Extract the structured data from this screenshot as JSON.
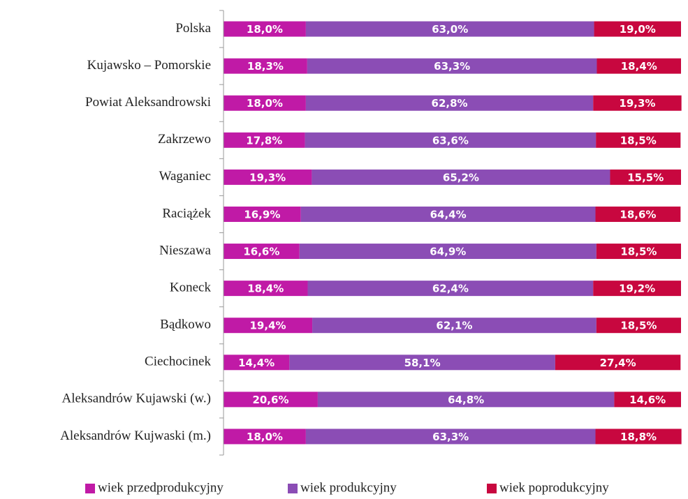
{
  "chart_data": {
    "type": "stacked_barh",
    "categories": [
      "Polska",
      "Kujawsko – Pomorskie",
      "Powiat Aleksandrowski",
      "Zakrzewo",
      "Waganiec",
      "Raciążek",
      "Nieszawa",
      "Koneck",
      "Bądkowo",
      "Ciechocinek",
      "Aleksandrów Kujawski (w.)",
      "Aleksandrów Kujwaski (m.)"
    ],
    "series": [
      {
        "name": "wiek przedprodukcyjny",
        "color": "#c01aa6",
        "values": [
          18.0,
          18.3,
          18.0,
          17.8,
          19.3,
          16.9,
          16.6,
          18.4,
          19.4,
          14.4,
          20.6,
          18.0
        ],
        "value_labels": [
          "18,0%",
          "18,3%",
          "18,0%",
          "17,8%",
          "19,3%",
          "16,9%",
          "16,6%",
          "18,4%",
          "19,4%",
          "14,4%",
          "20,6%",
          "18,0%"
        ]
      },
      {
        "name": "wiek produkcyjny",
        "color": "#8b4db5",
        "values": [
          63.0,
          63.3,
          62.8,
          63.6,
          65.2,
          64.4,
          64.9,
          62.4,
          62.1,
          58.1,
          64.8,
          63.3
        ],
        "value_labels": [
          "63,0%",
          "63,3%",
          "62,8%",
          "63,6%",
          "65,2%",
          "64,4%",
          "64,9%",
          "62,4%",
          "62,1%",
          "58,1%",
          "64,8%",
          "63,3%"
        ]
      },
      {
        "name": "wiek poprodukcyjny",
        "color": "#c8073f",
        "values": [
          19.0,
          18.4,
          19.3,
          18.5,
          15.5,
          18.6,
          18.5,
          19.2,
          18.5,
          27.4,
          14.6,
          18.8
        ],
        "value_labels": [
          "19,0%",
          "18,4%",
          "19,3%",
          "18,5%",
          "15,5%",
          "18,6%",
          "18,5%",
          "19,2%",
          "18,5%",
          "27,4%",
          "14,6%",
          "18,8%"
        ]
      }
    ],
    "xlim": [
      0,
      100
    ],
    "legend": "bottom"
  }
}
